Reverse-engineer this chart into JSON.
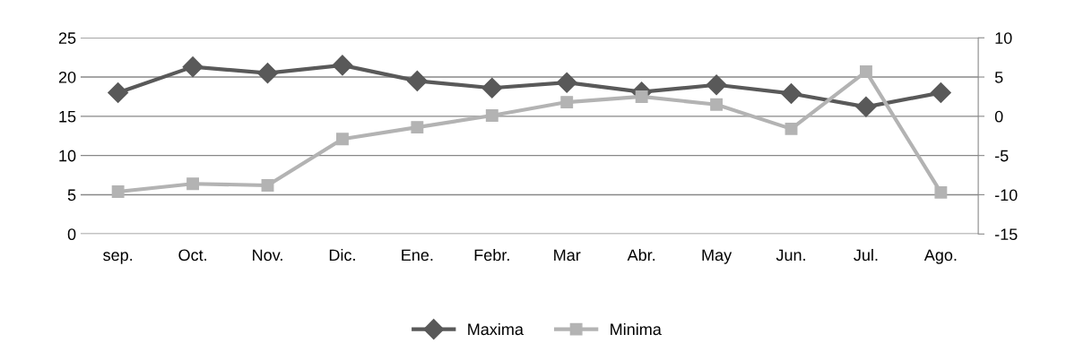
{
  "chart_data": {
    "type": "line",
    "categories": [
      "sep.",
      "Oct.",
      "Nov.",
      "Dic.",
      "Ene.",
      "Febr.",
      "Mar",
      "Abr.",
      "May",
      "Jun.",
      "Jul.",
      "Ago."
    ],
    "series": [
      {
        "name": "Maxima",
        "color": "#595959",
        "marker": "diamond",
        "values": [
          18,
          21.3,
          20.5,
          21.5,
          19.5,
          18.6,
          19.3,
          18.1,
          19,
          17.9,
          16.2,
          18
        ]
      },
      {
        "name": "Minima",
        "color": "#b3b3b3",
        "marker": "square",
        "axis": "y2",
        "values": [
          -9.6,
          -8.6,
          -8.8,
          -2.9,
          -1.4,
          0.1,
          1.8,
          2.5,
          1.5,
          -1.6,
          5.7,
          -9.7
        ]
      }
    ],
    "ylim": [
      0,
      25
    ],
    "yticks": [
      0,
      5,
      10,
      15,
      20,
      25
    ],
    "y2lim": [
      -15,
      10
    ],
    "y2ticks": [
      -15,
      -10,
      -5,
      0,
      5,
      10
    ],
    "grid": "y",
    "legend": "bottom",
    "line_style": "solid"
  }
}
